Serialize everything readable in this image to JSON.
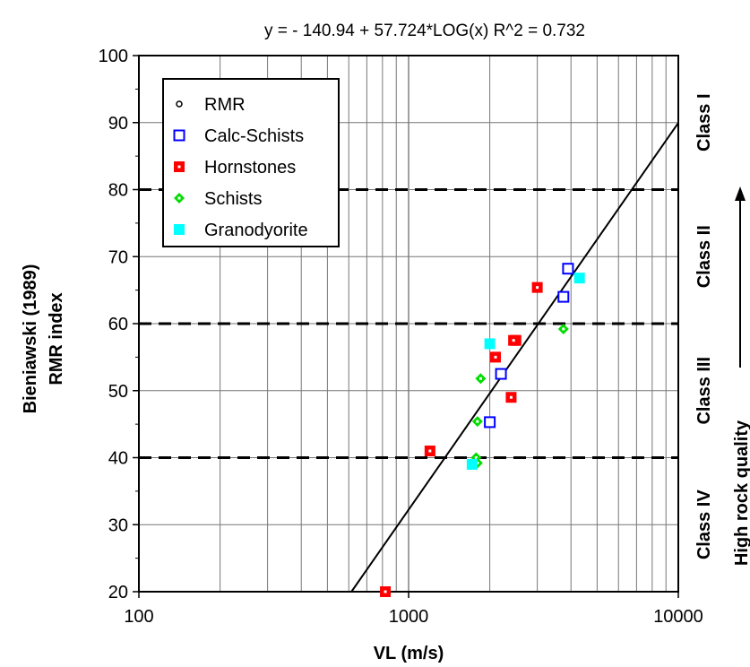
{
  "chart_data": {
    "type": "scatter",
    "equation": "y =  - 140.94 + 57.724*LOG(x)    R^2 = 0.732",
    "regression": {
      "intercept": -140.94,
      "slope": 57.724,
      "r2": 0.732
    },
    "xlabel": "VL (m/s)",
    "ylabel_line1": "Bieniawski (1989)",
    "ylabel_line2": "RMR index",
    "x_scale": "log",
    "xlim": [
      100,
      10000
    ],
    "ylim": [
      20,
      100
    ],
    "x_ticks": [
      100,
      1000,
      10000
    ],
    "x_tick_labels": [
      "100",
      "1000",
      "10000"
    ],
    "y_ticks": [
      20,
      30,
      40,
      50,
      60,
      70,
      80,
      90,
      100
    ],
    "y_tick_labels": [
      "20",
      "30",
      "40",
      "50",
      "60",
      "70",
      "80",
      "90",
      "100"
    ],
    "grid": true,
    "legend_position": "top-left",
    "class_boundaries": [
      40,
      60,
      80
    ],
    "class_labels": [
      {
        "label": "Class I",
        "y_center": 90
      },
      {
        "label": "Class II",
        "y_center": 70
      },
      {
        "label": "Class III",
        "y_center": 50
      },
      {
        "label": "Class IV",
        "y_center": 30
      }
    ],
    "quality_label": "High rock quality",
    "series": [
      {
        "name": "RMR",
        "marker": "circle",
        "color": "#000000",
        "points": []
      },
      {
        "name": "Calc-Schists",
        "marker": "square-open",
        "color": "#0000ff",
        "points": [
          [
            3900,
            68.2
          ],
          [
            3750,
            64.0
          ],
          [
            2200,
            52.5
          ],
          [
            2000,
            45.3
          ]
        ]
      },
      {
        "name": "Hornstones",
        "marker": "square-dot",
        "color": "#ff0000",
        "points": [
          [
            3000,
            65.4
          ],
          [
            2500,
            57.5
          ],
          [
            2450,
            57.5
          ],
          [
            2100,
            55.0
          ],
          [
            2400,
            49.0
          ],
          [
            1200,
            41.0
          ],
          [
            820,
            20.0
          ]
        ]
      },
      {
        "name": "Schists",
        "marker": "diamond",
        "color": "#00dd00",
        "points": [
          [
            3750,
            59.2
          ],
          [
            1850,
            51.8
          ],
          [
            1800,
            45.4
          ],
          [
            1780,
            40.0
          ],
          [
            1800,
            39.2
          ]
        ]
      },
      {
        "name": "Granodyorite",
        "marker": "square-filled",
        "color": "#00ffff",
        "points": [
          [
            4300,
            66.8
          ],
          [
            2000,
            57.0
          ],
          [
            1720,
            39.0
          ]
        ]
      }
    ]
  }
}
